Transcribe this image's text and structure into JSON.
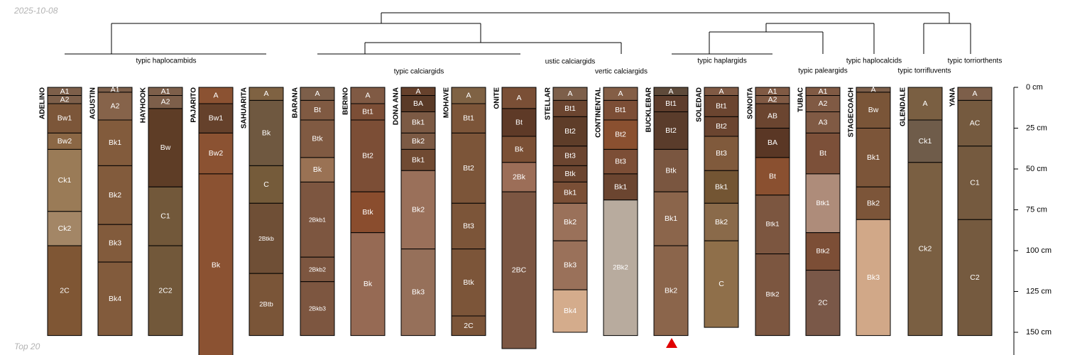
{
  "header": {
    "date": "2025-10-08"
  },
  "footer": {
    "label": "Top 20"
  },
  "depth_axis": {
    "unit": "cm",
    "ticks": [
      0,
      25,
      50,
      75,
      100,
      125,
      150
    ],
    "labels": [
      "0 cm",
      "25 cm",
      "50 cm",
      "75 cm",
      "100 cm",
      "125 cm",
      "150 cm"
    ]
  },
  "groups": [
    {
      "label": "typic haplocambids"
    },
    {
      "label": "typic calciargids"
    },
    {
      "label": "ustic calciargids"
    },
    {
      "label": "vertic calciargids"
    },
    {
      "label": "typic haplargids"
    },
    {
      "label": "typic paleargids"
    },
    {
      "label": "typic haplocalcids"
    },
    {
      "label": "typic torrifluvents"
    },
    {
      "label": "typic torriorthents"
    }
  ],
  "profiles": [
    {
      "name": "ADELINO",
      "horizons": [
        {
          "name": "A1",
          "top": 0,
          "bottom": 5,
          "color": "#7d5f4a"
        },
        {
          "name": "A2",
          "top": 5,
          "bottom": 10,
          "color": "#7d5f4a"
        },
        {
          "name": "Bw1",
          "top": 10,
          "bottom": 28,
          "color": "#7c5639"
        },
        {
          "name": "Bw2",
          "top": 28,
          "bottom": 38,
          "color": "#8b6745"
        },
        {
          "name": "Ck1",
          "top": 38,
          "bottom": 76,
          "color": "#9a7b57"
        },
        {
          "name": "Ck2",
          "top": 76,
          "bottom": 97,
          "color": "#a38666"
        },
        {
          "name": "2C",
          "top": 97,
          "bottom": 152,
          "color": "#7f5634"
        }
      ]
    },
    {
      "name": "AGUSTIN",
      "horizons": [
        {
          "name": "A1",
          "top": 0,
          "bottom": 3,
          "color": "#7d5f4a"
        },
        {
          "name": "A2",
          "top": 3,
          "bottom": 20,
          "color": "#86634a"
        },
        {
          "name": "Bk1",
          "top": 20,
          "bottom": 48,
          "color": "#825b3c"
        },
        {
          "name": "Bk2",
          "top": 48,
          "bottom": 84,
          "color": "#825b3c"
        },
        {
          "name": "Bk3",
          "top": 84,
          "bottom": 107,
          "color": "#825b3c"
        },
        {
          "name": "Bk4",
          "top": 107,
          "bottom": 152,
          "color": "#825b3c"
        }
      ]
    },
    {
      "name": "HAYHOOK",
      "horizons": [
        {
          "name": "A1",
          "top": 0,
          "bottom": 5,
          "color": "#7d5f4a"
        },
        {
          "name": "A2",
          "top": 5,
          "bottom": 13,
          "color": "#7d5f4a"
        },
        {
          "name": "Bw",
          "top": 13,
          "bottom": 61,
          "color": "#5e3d26"
        },
        {
          "name": "C1",
          "top": 61,
          "bottom": 97,
          "color": "#72583a"
        },
        {
          "name": "2C2",
          "top": 97,
          "bottom": 152,
          "color": "#72583a"
        }
      ]
    },
    {
      "name": "PAJARITO",
      "horizons": [
        {
          "name": "A",
          "top": 0,
          "bottom": 10,
          "color": "#8b5232"
        },
        {
          "name": "Bw1",
          "top": 10,
          "bottom": 28,
          "color": "#65412b"
        },
        {
          "name": "Bw2",
          "top": 28,
          "bottom": 53,
          "color": "#8b5232"
        },
        {
          "name": "Bk",
          "top": 53,
          "bottom": 165,
          "color": "#8b5232"
        }
      ]
    },
    {
      "name": "SAHUARITA",
      "horizons": [
        {
          "name": "A",
          "top": 0,
          "bottom": 8,
          "color": "#7f6242"
        },
        {
          "name": "Bk",
          "top": 8,
          "bottom": 48,
          "color": "#6f5840"
        },
        {
          "name": "C",
          "top": 48,
          "bottom": 71,
          "color": "#755b3a"
        },
        {
          "name": "2Btkb",
          "top": 71,
          "bottom": 114,
          "color": "#6f4f36"
        },
        {
          "name": "2Btb",
          "top": 114,
          "bottom": 152,
          "color": "#7a5538"
        }
      ]
    },
    {
      "name": "BARANA",
      "horizons": [
        {
          "name": "A",
          "top": 0,
          "bottom": 8,
          "color": "#7d5f4a"
        },
        {
          "name": "Bt",
          "top": 8,
          "bottom": 20,
          "color": "#805a42"
        },
        {
          "name": "Btk",
          "top": 20,
          "bottom": 43,
          "color": "#805a42"
        },
        {
          "name": "Bk",
          "top": 43,
          "bottom": 58,
          "color": "#9a7254"
        },
        {
          "name": "2Bkb1",
          "top": 58,
          "bottom": 104,
          "color": "#7d5640"
        },
        {
          "name": "2Bkb2",
          "top": 104,
          "bottom": 119,
          "color": "#7d5640"
        },
        {
          "name": "2Bkb3",
          "top": 119,
          "bottom": 152,
          "color": "#7d5640"
        }
      ]
    },
    {
      "name": "BERINO",
      "horizons": [
        {
          "name": "A",
          "top": 0,
          "bottom": 10,
          "color": "#805a44"
        },
        {
          "name": "Bt1",
          "top": 10,
          "bottom": 20,
          "color": "#7c4e36"
        },
        {
          "name": "Bt2",
          "top": 20,
          "bottom": 64,
          "color": "#7c4e36"
        },
        {
          "name": "Btk",
          "top": 64,
          "bottom": 89,
          "color": "#8a4d2e"
        },
        {
          "name": "Bk",
          "top": 89,
          "bottom": 152,
          "color": "#966a54"
        }
      ]
    },
    {
      "name": "DONA ANA",
      "horizons": [
        {
          "name": "A",
          "top": 0,
          "bottom": 5,
          "color": "#66412c"
        },
        {
          "name": "BA",
          "top": 5,
          "bottom": 15,
          "color": "#5a3a27"
        },
        {
          "name": "Bk1",
          "top": 15,
          "bottom": 28,
          "color": "#7c5a44"
        },
        {
          "name": "Bk2",
          "top": 28,
          "bottom": 38,
          "color": "#7c5a44"
        },
        {
          "name": "Bk1",
          "top": 38,
          "bottom": 51,
          "color": "#704a32"
        },
        {
          "name": "Bk2",
          "top": 51,
          "bottom": 99,
          "color": "#9a705a"
        },
        {
          "name": "Bk3",
          "top": 99,
          "bottom": 152,
          "color": "#96705a"
        }
      ]
    },
    {
      "name": "MOHAVE",
      "horizons": [
        {
          "name": "A",
          "top": 0,
          "bottom": 10,
          "color": "#7f6244"
        },
        {
          "name": "Bt1",
          "top": 10,
          "bottom": 28,
          "color": "#7c5539"
        },
        {
          "name": "Bt2",
          "top": 28,
          "bottom": 71,
          "color": "#7c5539"
        },
        {
          "name": "Bt3",
          "top": 71,
          "bottom": 99,
          "color": "#7c5539"
        },
        {
          "name": "Btk",
          "top": 99,
          "bottom": 140,
          "color": "#7c5539"
        },
        {
          "name": "2C",
          "top": 140,
          "bottom": 152,
          "color": "#7c5539"
        }
      ]
    },
    {
      "name": "ONITE",
      "horizons": [
        {
          "name": "A",
          "top": 0,
          "bottom": 13,
          "color": "#7a4f36"
        },
        {
          "name": "Bt",
          "top": 13,
          "bottom": 30,
          "color": "#5e3a27"
        },
        {
          "name": "Bk",
          "top": 30,
          "bottom": 46,
          "color": "#7b5035"
        },
        {
          "name": "2Bk",
          "top": 46,
          "bottom": 64,
          "color": "#9c6e58"
        },
        {
          "name": "2BC",
          "top": 64,
          "bottom": 160,
          "color": "#7c5642"
        }
      ]
    },
    {
      "name": "STELLAR",
      "horizons": [
        {
          "name": "A",
          "top": 0,
          "bottom": 8,
          "color": "#7d5f4a"
        },
        {
          "name": "Bt1",
          "top": 8,
          "bottom": 18,
          "color": "#6b4530"
        },
        {
          "name": "Bt2",
          "top": 18,
          "bottom": 36,
          "color": "#5e3d29"
        },
        {
          "name": "Bt3",
          "top": 36,
          "bottom": 48,
          "color": "#6b4530"
        },
        {
          "name": "Btk",
          "top": 48,
          "bottom": 58,
          "color": "#6b4530"
        },
        {
          "name": "Bk1",
          "top": 58,
          "bottom": 71,
          "color": "#7a4f36"
        },
        {
          "name": "Bk2",
          "top": 71,
          "bottom": 94,
          "color": "#9a715a"
        },
        {
          "name": "Bk3",
          "top": 94,
          "bottom": 124,
          "color": "#9a715a"
        },
        {
          "name": "Bk4",
          "top": 124,
          "bottom": 150,
          "color": "#d4ac8c"
        }
      ]
    },
    {
      "name": "CONTINENTAL",
      "horizons": [
        {
          "name": "A",
          "top": 0,
          "bottom": 8,
          "color": "#845e46"
        },
        {
          "name": "Bt1",
          "top": 8,
          "bottom": 20,
          "color": "#7c4e36"
        },
        {
          "name": "Bt2",
          "top": 20,
          "bottom": 38,
          "color": "#8a5030"
        },
        {
          "name": "Bt3",
          "top": 38,
          "bottom": 53,
          "color": "#7c4e36"
        },
        {
          "name": "Bk1",
          "top": 53,
          "bottom": 69,
          "color": "#6b4530"
        },
        {
          "name": "2Bk2",
          "top": 69,
          "bottom": 152,
          "color": "#b8ab9e"
        }
      ]
    },
    {
      "name": "BUCKLEBAR",
      "horizons": [
        {
          "name": "A",
          "top": 0,
          "bottom": 5,
          "color": "#5e4a3a"
        },
        {
          "name": "Bt1",
          "top": 5,
          "bottom": 15,
          "color": "#5e3d2c"
        },
        {
          "name": "Bt2",
          "top": 15,
          "bottom": 38,
          "color": "#5a3c2b"
        },
        {
          "name": "Btk",
          "top": 38,
          "bottom": 64,
          "color": "#7a5640"
        },
        {
          "name": "Bk1",
          "top": 64,
          "bottom": 97,
          "color": "#8b654b"
        },
        {
          "name": "Bk2",
          "top": 97,
          "bottom": 152,
          "color": "#8b654b"
        }
      ]
    },
    {
      "name": "SOLEDAD",
      "horizons": [
        {
          "name": "A",
          "top": 0,
          "bottom": 5,
          "color": "#805a44"
        },
        {
          "name": "Bt1",
          "top": 5,
          "bottom": 18,
          "color": "#6b4530"
        },
        {
          "name": "Bt2",
          "top": 18,
          "bottom": 30,
          "color": "#6b4530"
        },
        {
          "name": "Bt3",
          "top": 30,
          "bottom": 51,
          "color": "#805a3c"
        },
        {
          "name": "Bk1",
          "top": 51,
          "bottom": 71,
          "color": "#735533"
        },
        {
          "name": "Bk2",
          "top": 71,
          "bottom": 94,
          "color": "#8a6a4a"
        },
        {
          "name": "C",
          "top": 94,
          "bottom": 147,
          "color": "#8f6f4a"
        }
      ]
    },
    {
      "name": "SONOITA",
      "horizons": [
        {
          "name": "A1",
          "top": 0,
          "bottom": 5,
          "color": "#805a44"
        },
        {
          "name": "A2",
          "top": 5,
          "bottom": 10,
          "color": "#805a44"
        },
        {
          "name": "AB",
          "top": 10,
          "bottom": 25,
          "color": "#6b4530"
        },
        {
          "name": "BA",
          "top": 25,
          "bottom": 43,
          "color": "#5a3725"
        },
        {
          "name": "Bt",
          "top": 43,
          "bottom": 66,
          "color": "#8a5030"
        },
        {
          "name": "Btk1",
          "top": 66,
          "bottom": 102,
          "color": "#7c5640"
        },
        {
          "name": "Btk2",
          "top": 102,
          "bottom": 152,
          "color": "#7c5640"
        }
      ]
    },
    {
      "name": "TUBAC",
      "horizons": [
        {
          "name": "A1",
          "top": 0,
          "bottom": 5,
          "color": "#805a44"
        },
        {
          "name": "A2",
          "top": 5,
          "bottom": 15,
          "color": "#805a44"
        },
        {
          "name": "A3",
          "top": 15,
          "bottom": 28,
          "color": "#805a44"
        },
        {
          "name": "Bt",
          "top": 28,
          "bottom": 53,
          "color": "#7c5039"
        },
        {
          "name": "Btk1",
          "top": 53,
          "bottom": 89,
          "color": "#ae8c7a"
        },
        {
          "name": "Btk2",
          "top": 89,
          "bottom": 112,
          "color": "#7c4e36"
        },
        {
          "name": "2C",
          "top": 112,
          "bottom": 152,
          "color": "#7a5848"
        }
      ]
    },
    {
      "name": "STAGECOACH",
      "horizons": [
        {
          "name": "A",
          "top": 0,
          "bottom": 3,
          "color": "#7d5f4a"
        },
        {
          "name": "Bw",
          "top": 3,
          "bottom": 25,
          "color": "#7a5538"
        },
        {
          "name": "Bk1",
          "top": 25,
          "bottom": 61,
          "color": "#7c5539"
        },
        {
          "name": "Bk2",
          "top": 61,
          "bottom": 81,
          "color": "#7c5539"
        },
        {
          "name": "Bk3",
          "top": 81,
          "bottom": 152,
          "color": "#d1a888"
        }
      ]
    },
    {
      "name": "GLENDALE",
      "horizons": [
        {
          "name": "A",
          "top": 0,
          "bottom": 20,
          "color": "#7a5f42"
        },
        {
          "name": "Ck1",
          "top": 20,
          "bottom": 46,
          "color": "#6f5c4a"
        },
        {
          "name": "Ck2",
          "top": 46,
          "bottom": 152,
          "color": "#7a5f42"
        }
      ]
    },
    {
      "name": "YANA",
      "horizons": [
        {
          "name": "A",
          "top": 0,
          "bottom": 8,
          "color": "#7d5f4a"
        },
        {
          "name": "AC",
          "top": 8,
          "bottom": 36,
          "color": "#755a3f"
        },
        {
          "name": "C1",
          "top": 36,
          "bottom": 81,
          "color": "#755a3f"
        },
        {
          "name": "C2",
          "top": 81,
          "bottom": 152,
          "color": "#755a3f"
        }
      ]
    }
  ]
}
